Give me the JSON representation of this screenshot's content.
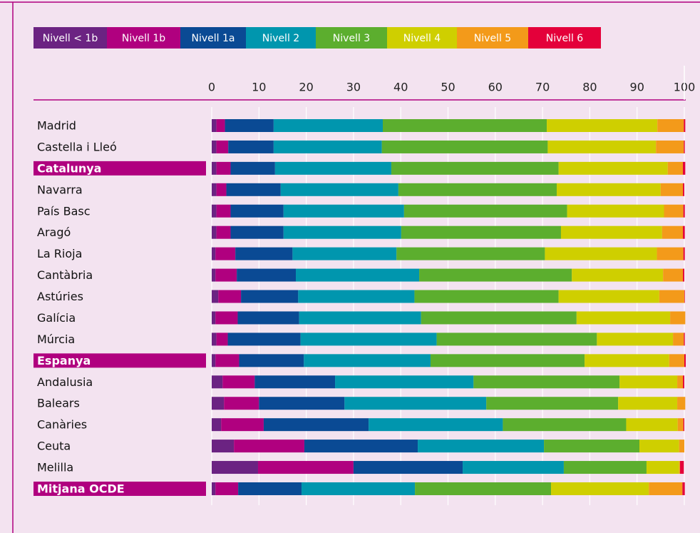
{
  "chart_data": {
    "type": "stacked-bar-horizontal",
    "categories": [
      "Madrid",
      "Castella i Lleó",
      "Catalunya",
      "Navarra",
      "País Basc",
      "Aragó",
      "La Rioja",
      "Cantàbria",
      "Astúries",
      "Galícia",
      "Múrcia",
      "Espanya",
      "Andalusia",
      "Balears",
      "Canàries",
      "Ceuta",
      "Melilla",
      "Mitjana OCDE"
    ],
    "highlight": [
      2,
      11,
      17
    ],
    "xlim": [
      0,
      100
    ],
    "xticks": [
      0,
      10,
      20,
      30,
      40,
      50,
      60,
      70,
      80,
      90,
      100
    ],
    "grid": true,
    "legend": "top-left",
    "series": [
      {
        "name": "Nivell < 1b",
        "color": "#6b2382",
        "values": [
          1.0,
          1.0,
          1.0,
          1.0,
          1.0,
          1.0,
          0.8,
          0.8,
          1.4,
          0.8,
          1.0,
          0.8,
          2.3,
          2.6,
          2.0,
          4.7,
          9.8,
          0.8
        ]
      },
      {
        "name": "Nivell 1b",
        "color": "#b0007f",
        "values": [
          1.8,
          2.5,
          3.0,
          2.1,
          3.0,
          3.0,
          4.2,
          4.5,
          4.8,
          4.7,
          2.4,
          5.0,
          6.8,
          7.4,
          9.0,
          14.9,
          20.2,
          4.8
        ]
      },
      {
        "name": "Nivell 1a",
        "color": "#0a4a94",
        "values": [
          10.3,
          9.6,
          9.4,
          11.5,
          11.2,
          11.2,
          12.1,
          12.5,
          12.1,
          13.0,
          15.4,
          13.7,
          17.0,
          18.1,
          22.2,
          24.0,
          23.1,
          13.4
        ]
      },
      {
        "name": "Nivell 2",
        "color": "#0096ae",
        "values": [
          23.1,
          22.9,
          24.6,
          24.9,
          25.5,
          24.9,
          22.0,
          26.1,
          24.6,
          25.8,
          28.8,
          26.8,
          29.3,
          30.0,
          28.4,
          26.7,
          21.4,
          24.0
        ]
      },
      {
        "name": "Nivell 3",
        "color": "#5cae2e",
        "values": [
          34.7,
          35.1,
          35.4,
          33.5,
          34.5,
          33.8,
          31.4,
          32.3,
          30.5,
          32.9,
          33.9,
          32.6,
          30.9,
          27.9,
          26.1,
          20.2,
          17.5,
          28.8
        ]
      },
      {
        "name": "Nivell 4",
        "color": "#cfcf00",
        "values": [
          23.4,
          22.9,
          23.1,
          22.0,
          20.5,
          21.4,
          23.7,
          19.3,
          21.3,
          19.8,
          16.1,
          17.9,
          12.2,
          12.5,
          10.9,
          8.4,
          6.9,
          20.7
        ]
      },
      {
        "name": "Nivell 5",
        "color": "#f39a1a",
        "values": [
          5.6,
          5.9,
          3.2,
          4.7,
          4.1,
          4.4,
          5.6,
          4.2,
          5.3,
          3.2,
          2.3,
          3.2,
          1.2,
          1.7,
          1.2,
          1.1,
          0.2,
          7.1
        ]
      },
      {
        "name": "Nivell 6",
        "color": "#e4003a",
        "values": [
          0.3,
          0.2,
          0.5,
          0.3,
          0.3,
          0.4,
          0.3,
          0.3,
          0.1,
          0.0,
          0.2,
          0.3,
          0.3,
          0.0,
          0.2,
          0.0,
          0.8,
          0.5
        ]
      }
    ]
  }
}
